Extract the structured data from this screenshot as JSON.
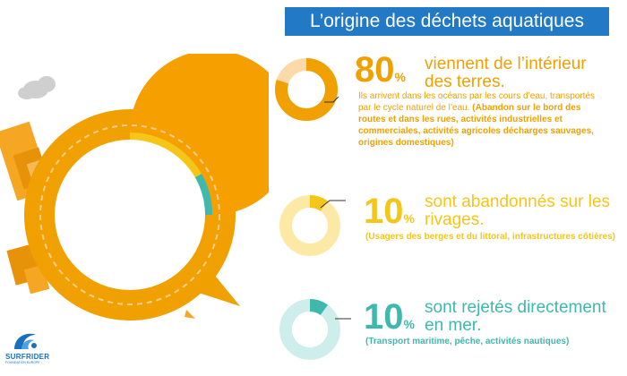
{
  "title": "L’origine des déchets aquatiques",
  "stats": [
    {
      "percent": "80",
      "percent_symbol": "%",
      "headline": "viennent de l’intérieur des terres.",
      "detail_normal": "Ils arrivent dans les océans par les cours d’eau, transportés par le cycle naturel de l’eau. ",
      "detail_bold": "(Abandon sur le bord des routes et dans les rues, activités industrielles et commerciales, activités agricoles décharges sauvages, origines domestiques)",
      "value_fraction": 0.8,
      "color": "#f0a000",
      "track_color": "#fbd9a8"
    },
    {
      "percent": "10",
      "percent_symbol": "%",
      "headline": "sont abandonnés sur les rivages.",
      "detail_bold": "(Usagers des berges et du littoral, infrastructures côtières)",
      "value_fraction": 0.1,
      "color": "#f5c518",
      "track_color": "#fce9a6"
    },
    {
      "percent": "10",
      "percent_symbol": "%",
      "headline": "sont rejetés directement en mer.",
      "detail_bold": "(Transport maritime, pêche, activités nautiques)",
      "value_fraction": 0.1,
      "color": "#3fb8ad",
      "track_color": "#cdeeea"
    }
  ],
  "logo": {
    "name": "SURFRIDER",
    "subtitle": "FOUNDATION EUROPE"
  },
  "colors": {
    "banner": "#2279c5",
    "orange": "#f0a000",
    "yellow": "#f5c518",
    "teal": "#3fb8ad"
  }
}
